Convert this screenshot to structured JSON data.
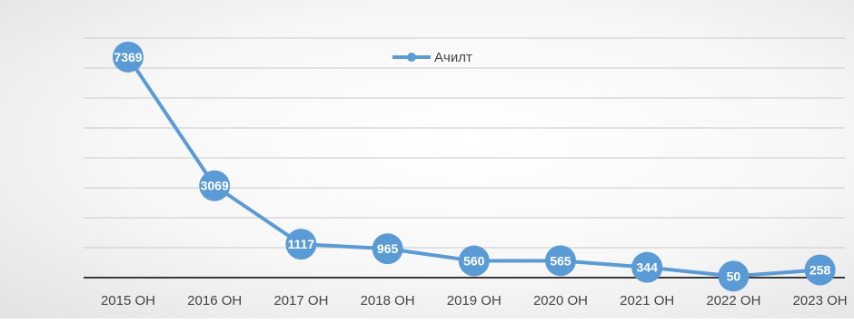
{
  "colors": {
    "series": "#5b9bd5",
    "grid": "#c9c9c9",
    "axis": "#3a3a3a",
    "text": "#444444",
    "label_text": "#ffffff"
  },
  "chart_data": {
    "type": "line",
    "title": "",
    "xlabel": "",
    "ylabel": "",
    "categories": [
      "2015 ОН",
      "2016 ОН",
      "2017  ОН",
      "2018 ОН",
      "2019 ОН",
      "2020 ОН",
      "2021 ОН",
      "2022 ОН",
      "2023 ОН"
    ],
    "series": [
      {
        "name": "Ачилт",
        "values": [
          7369,
          3069,
          1117,
          965,
          560,
          565,
          344,
          50,
          258
        ]
      }
    ],
    "ylim": [
      0,
      8000
    ],
    "y_tick_labels_shown": false,
    "grid": true,
    "legend_position": "top-center",
    "marker": "circle",
    "data_labels": "on-marker"
  }
}
